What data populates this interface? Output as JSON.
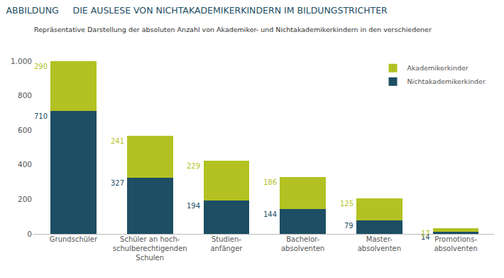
{
  "chart_data": {
    "type": "bar",
    "title": "ABBILDUNG     DIE AUSLESE VON NICHTAKADEMIKERKINDERN IM BILDUNGSTRICHTER",
    "subtitle": "Repräsentative Darstellung der absoluten Anzahl von Akademiker- und Nichtakademikerkindern in den verschiedenen Bildungsabschnitten",
    "categories": [
      "Grundschüler",
      "Schüler an hoch-\nschulberechtigenden\nSchulen",
      "Studien-\nanfänger",
      "Bachelor-\nabsolventen",
      "Master-\nabsolventen",
      "Promotions-\nabsolventen"
    ],
    "series": [
      {
        "name": "Nichtakademikerkinder",
        "color": "#1d4e63",
        "values": [
          710,
          327,
          194,
          144,
          79,
          14
        ]
      },
      {
        "name": "Akademikerkinder",
        "color": "#b3c222",
        "values": [
          290,
          241,
          229,
          186,
          125,
          17
        ]
      }
    ],
    "stacked": true,
    "data_labels": true,
    "ylim": [
      0,
      1000
    ],
    "yticks": [
      0,
      200,
      400,
      600,
      800,
      {
        "value": 1000,
        "label": "1.000"
      }
    ],
    "grid": false,
    "legend": "top right"
  }
}
